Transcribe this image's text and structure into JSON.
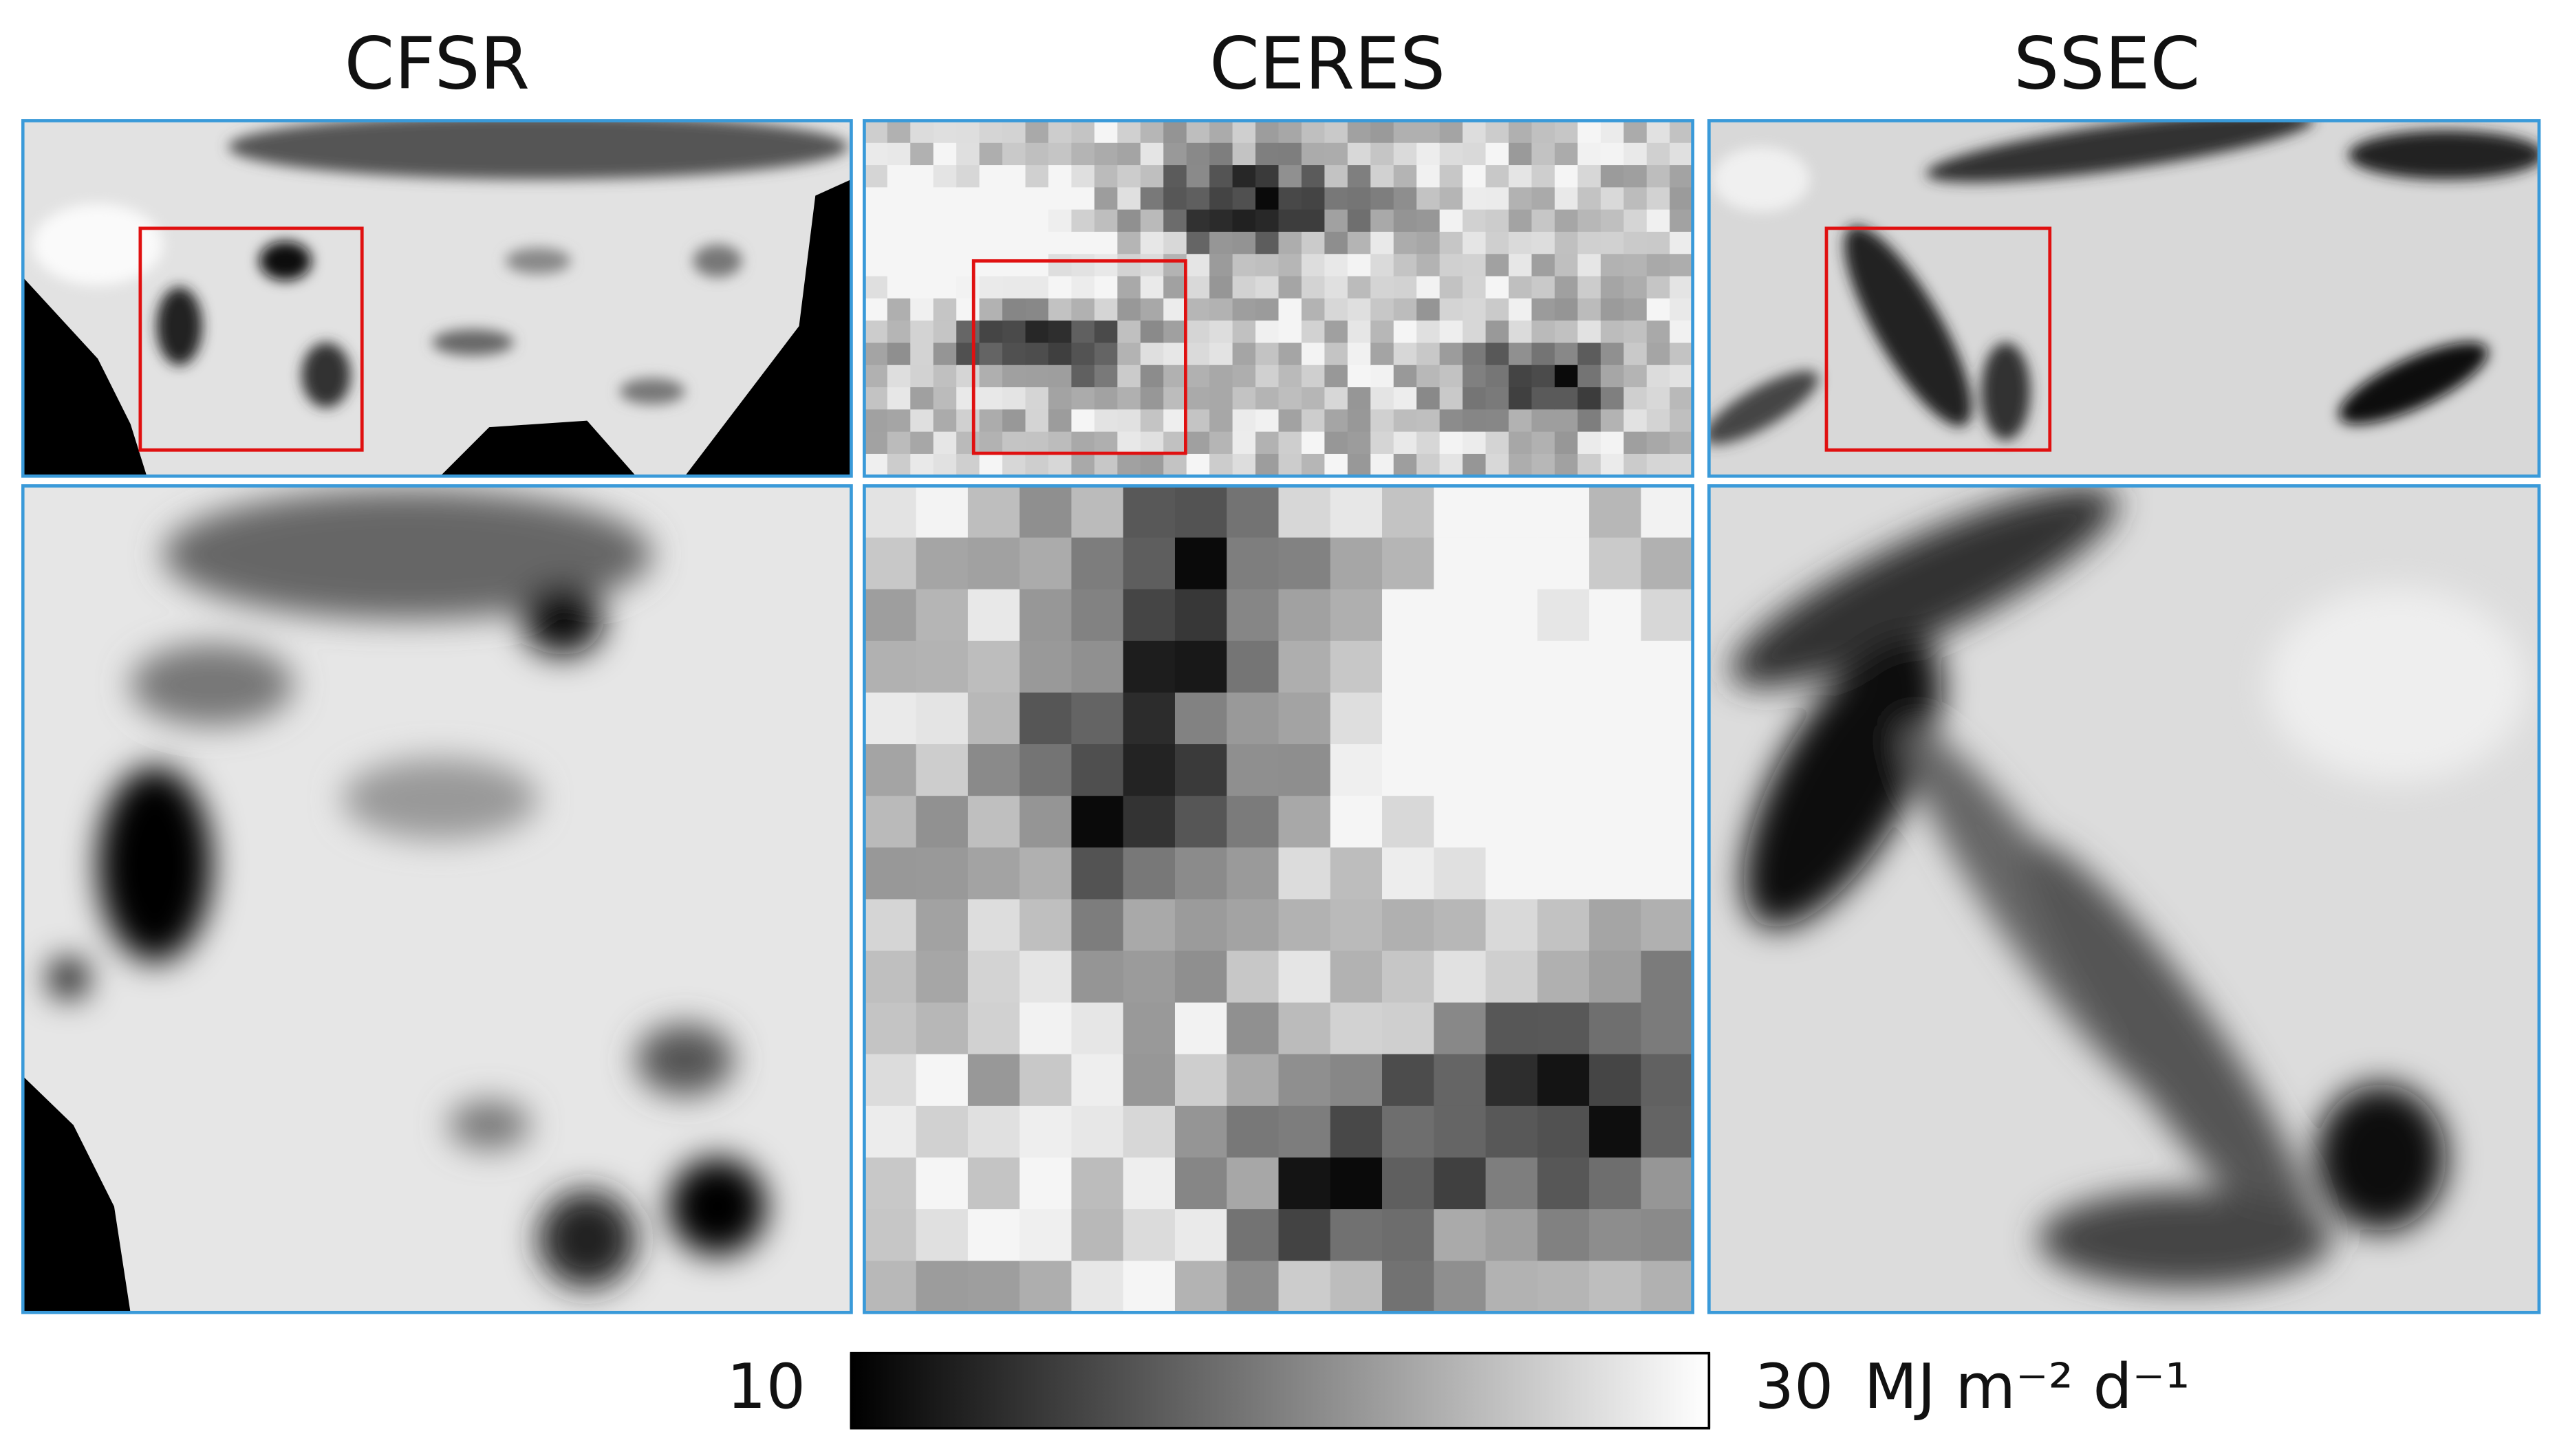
{
  "panels": [
    {
      "title": "CFSR"
    },
    {
      "title": "CERES"
    },
    {
      "title": "SSEC"
    }
  ],
  "colorbar": {
    "lim": [
      10,
      30
    ],
    "ticks": [
      10,
      30
    ],
    "unit": "MJ m⁻² d⁻¹"
  }
}
